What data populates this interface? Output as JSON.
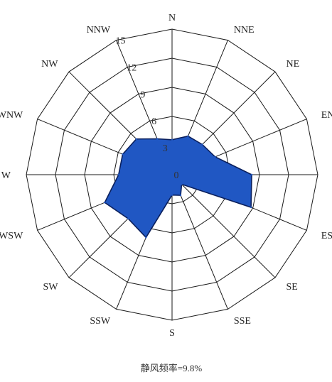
{
  "chart_data": {
    "type": "radar",
    "directions": [
      "N",
      "NNE",
      "NE",
      "ENE",
      "E",
      "ESE",
      "SE",
      "SSE",
      "S",
      "SSW",
      "SW",
      "WSW",
      "W",
      "WNW",
      "NW",
      "NNW"
    ],
    "values": [
      3.6,
      4.3,
      4.4,
      4.8,
      8.2,
      8.8,
      1.4,
      2.3,
      2.1,
      7.0,
      6.4,
      7.5,
      5.5,
      5.5,
      5.2,
      4.0
    ],
    "radial_ticks": [
      "0",
      "3",
      "6",
      "9",
      "12",
      "15"
    ],
    "rmax": 15,
    "series_color": "#2057c3"
  },
  "footer_text": "静风频率=9.8%"
}
